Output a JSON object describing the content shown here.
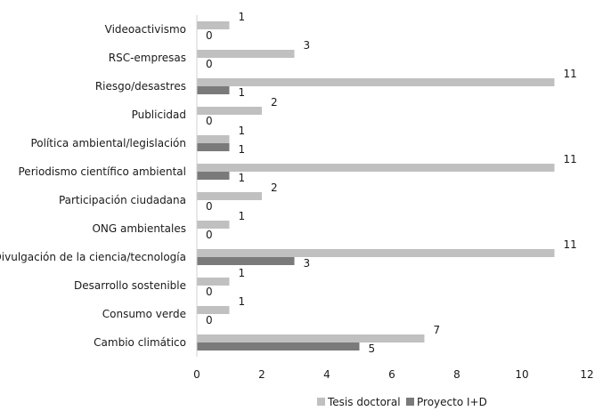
{
  "chart_data": {
    "type": "bar",
    "orientation": "horizontal",
    "categories": [
      "Videoactivismo",
      "RSC-empresas",
      "Riesgo/desastres",
      "Publicidad",
      "Política ambiental/legislación",
      "Periodismo científico ambiental",
      "Participación ciudadana",
      "ONG ambientales",
      "Divulgación de la ciencia/tecnología",
      "Desarrollo sostenible",
      "Consumo verde",
      "Cambio climático"
    ],
    "series": [
      {
        "name": "Tesis doctoral",
        "color": "#c0c0c0",
        "values": [
          1,
          3,
          11,
          2,
          1,
          11,
          2,
          1,
          11,
          1,
          1,
          7
        ]
      },
      {
        "name": "Proyecto I+D",
        "color": "#7a7a7a",
        "values": [
          0,
          0,
          1,
          0,
          1,
          1,
          0,
          0,
          3,
          0,
          0,
          5
        ]
      }
    ],
    "xlim": [
      0,
      12
    ],
    "xticks": [
      "0",
      "2",
      "4",
      "6",
      "8",
      "10",
      "12"
    ],
    "grid": false,
    "legend_position": "bottom",
    "title": "",
    "xlabel": "",
    "ylabel": ""
  }
}
